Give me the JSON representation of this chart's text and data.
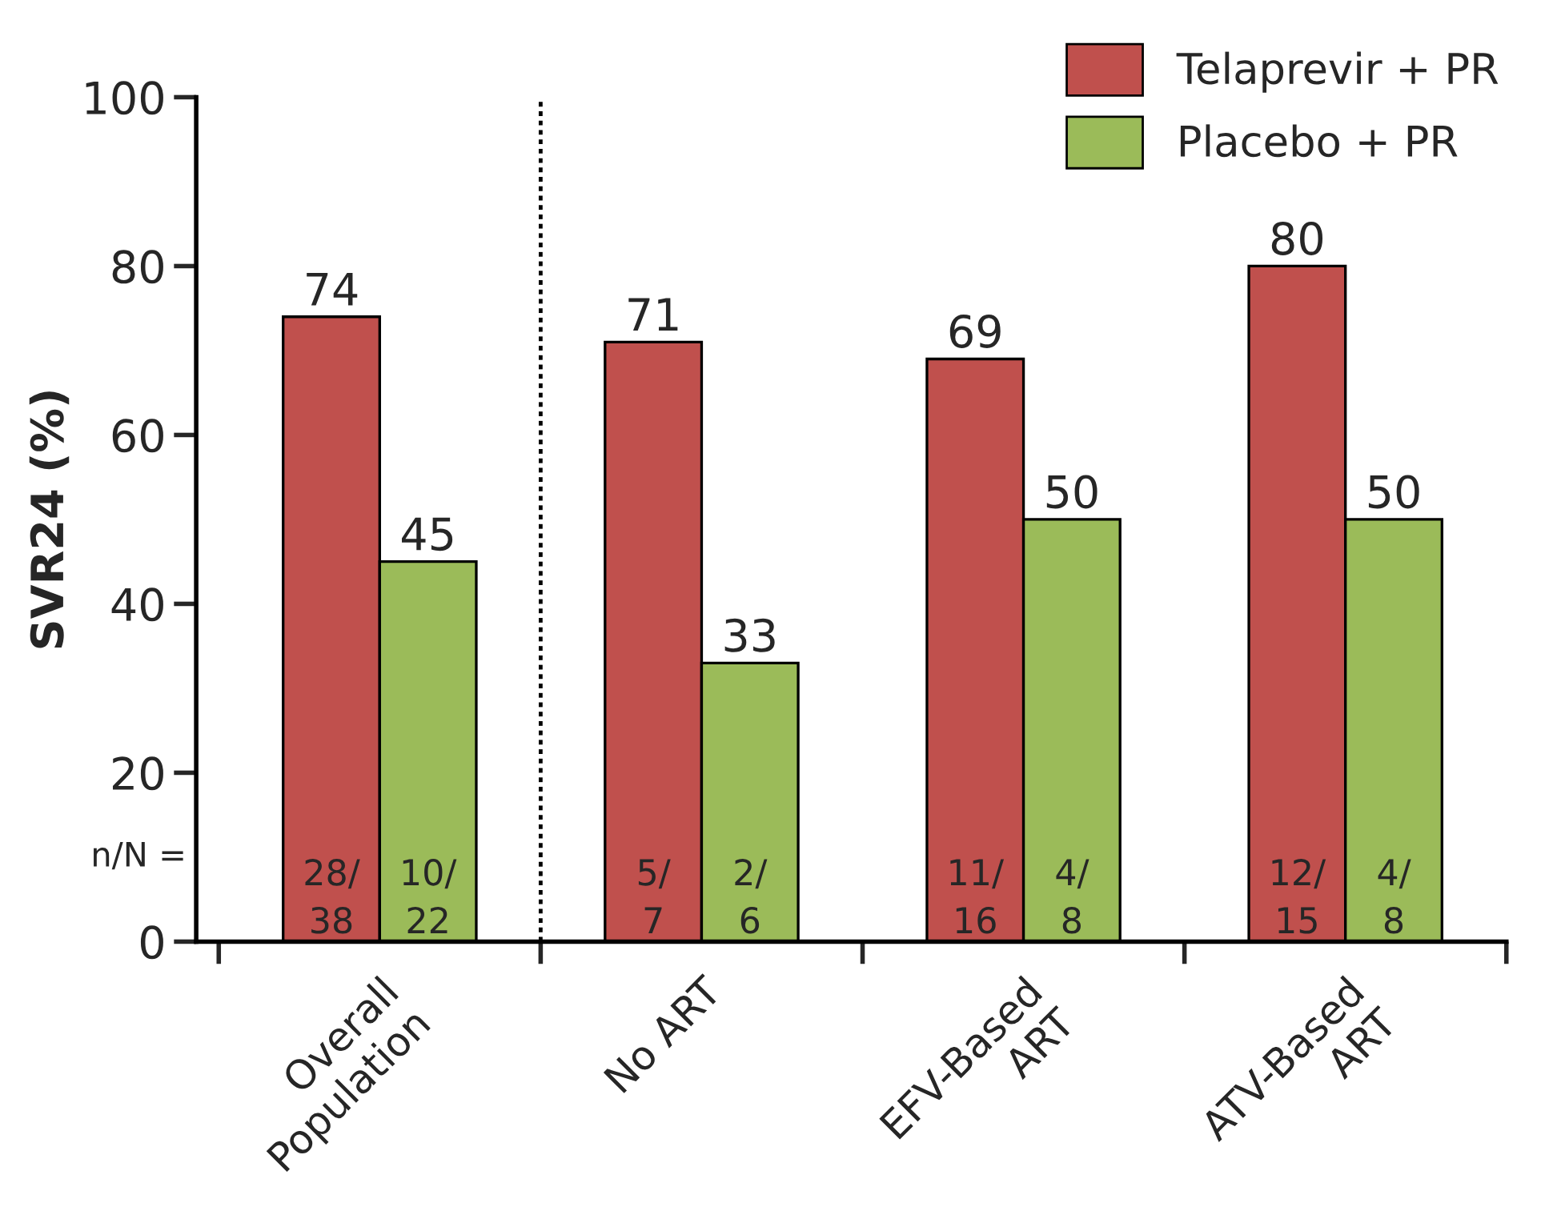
{
  "chart_data": {
    "type": "bar",
    "categories": [
      "Overall\nPopulation",
      "No ART",
      "EFV-Based\nART",
      "ATV-Based\nART"
    ],
    "series": [
      {
        "name": "Telaprevir + PR",
        "color": "#c0504d",
        "values": [
          74,
          71,
          69,
          80
        ]
      },
      {
        "name": "Placebo + PR",
        "color": "#9bbb59",
        "values": [
          45,
          33,
          50,
          50
        ]
      }
    ],
    "ylabel": "SVR24 (%)",
    "ylim": [
      0,
      100
    ],
    "yticks": [
      0,
      20,
      40,
      60,
      80,
      100
    ],
    "data_labels": true,
    "grid": false,
    "legend": "top right",
    "annotations": [
      "n/N =",
      "28/\n38",
      "10/\n22",
      "5/\n7",
      "2/\n6",
      "11/\n16",
      "4/\n8",
      "12/\n15",
      "4/\n8"
    ]
  }
}
